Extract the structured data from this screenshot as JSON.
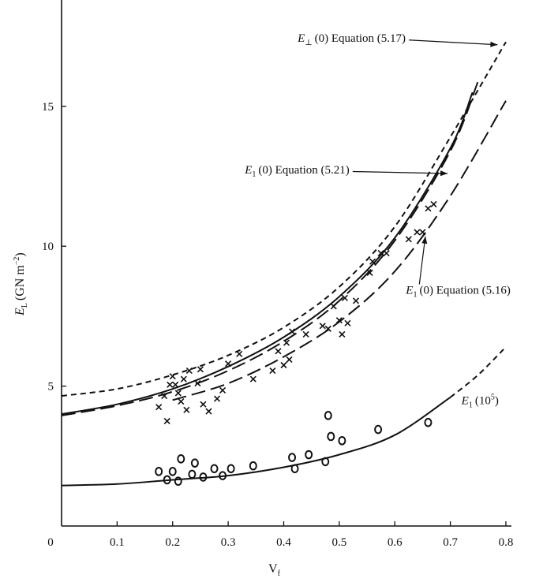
{
  "chart_data": {
    "type": "scatter",
    "title": "",
    "xlabel": "V",
    "xlabel_sub": "f",
    "ylabel": "E",
    "ylabel_sub": "L",
    "ylabel_units": "(GN m",
    "ylabel_units_sup": "−2",
    "ylabel_units_close": ")",
    "xlim": [
      0,
      0.81
    ],
    "ylim": [
      0,
      18.8
    ],
    "x_ticks": [
      0,
      0.1,
      0.2,
      0.3,
      0.4,
      0.5,
      0.6,
      0.7,
      0.8
    ],
    "x_tick_labels": [
      "0",
      "0.1",
      "0.2",
      "0.3",
      "0.4",
      "0.5",
      "0.6",
      "0.7",
      "0.8"
    ],
    "y_ticks": [
      5,
      10,
      15
    ],
    "y_tick_labels": [
      "5",
      "10",
      "15"
    ],
    "grid": false,
    "series": [
      {
        "marker": "x",
        "points": [
          [
            0.175,
            4.25
          ],
          [
            0.185,
            4.65
          ],
          [
            0.19,
            3.75
          ],
          [
            0.195,
            5.05
          ],
          [
            0.2,
            5.35
          ],
          [
            0.205,
            5.05
          ],
          [
            0.21,
            4.75
          ],
          [
            0.215,
            4.45
          ],
          [
            0.22,
            5.25
          ],
          [
            0.225,
            4.15
          ],
          [
            0.23,
            5.55
          ],
          [
            0.245,
            5.1
          ],
          [
            0.25,
            5.6
          ],
          [
            0.255,
            4.35
          ],
          [
            0.265,
            4.1
          ],
          [
            0.28,
            4.55
          ],
          [
            0.29,
            4.85
          ],
          [
            0.3,
            5.8
          ],
          [
            0.32,
            6.15
          ],
          [
            0.345,
            5.25
          ],
          [
            0.38,
            5.55
          ],
          [
            0.39,
            6.25
          ],
          [
            0.4,
            5.75
          ],
          [
            0.405,
            6.55
          ],
          [
            0.41,
            5.95
          ],
          [
            0.415,
            6.95
          ],
          [
            0.44,
            6.85
          ],
          [
            0.47,
            7.15
          ],
          [
            0.48,
            7.05
          ],
          [
            0.49,
            7.85
          ],
          [
            0.5,
            7.35
          ],
          [
            0.505,
            6.85
          ],
          [
            0.51,
            8.15
          ],
          [
            0.515,
            7.25
          ],
          [
            0.53,
            8.05
          ],
          [
            0.555,
            9.05
          ],
          [
            0.56,
            9.45
          ],
          [
            0.575,
            9.75
          ],
          [
            0.585,
            9.75
          ],
          [
            0.625,
            10.25
          ],
          [
            0.64,
            10.5
          ],
          [
            0.65,
            10.5
          ],
          [
            0.66,
            11.35
          ],
          [
            0.67,
            11.5
          ]
        ]
      },
      {
        "marker": "o",
        "points": [
          [
            0.175,
            1.95
          ],
          [
            0.19,
            1.65
          ],
          [
            0.2,
            1.95
          ],
          [
            0.21,
            1.6
          ],
          [
            0.215,
            2.4
          ],
          [
            0.235,
            1.85
          ],
          [
            0.24,
            2.25
          ],
          [
            0.255,
            1.75
          ],
          [
            0.275,
            2.05
          ],
          [
            0.29,
            1.8
          ],
          [
            0.305,
            2.05
          ],
          [
            0.345,
            2.15
          ],
          [
            0.415,
            2.45
          ],
          [
            0.42,
            2.05
          ],
          [
            0.445,
            2.55
          ],
          [
            0.475,
            2.3
          ],
          [
            0.48,
            3.95
          ],
          [
            0.485,
            3.2
          ],
          [
            0.505,
            3.05
          ],
          [
            0.57,
            3.45
          ],
          [
            0.66,
            3.7
          ]
        ]
      }
    ],
    "curves": [
      {
        "id": "eq517",
        "style": "short-dash",
        "description": "Equation (5.17)",
        "points": [
          [
            0,
            4.65
          ],
          [
            0.1,
            4.9
          ],
          [
            0.2,
            5.4
          ],
          [
            0.3,
            6.1
          ],
          [
            0.4,
            7.1
          ],
          [
            0.5,
            8.55
          ],
          [
            0.6,
            10.7
          ],
          [
            0.7,
            13.9
          ],
          [
            0.8,
            17.3
          ]
        ]
      },
      {
        "id": "eq521",
        "style": "solid",
        "description": "Equation (5.21)",
        "points": [
          [
            0,
            4.0
          ],
          [
            0.1,
            4.35
          ],
          [
            0.2,
            4.9
          ],
          [
            0.3,
            5.7
          ],
          [
            0.4,
            6.75
          ],
          [
            0.5,
            8.2
          ],
          [
            0.6,
            10.3
          ],
          [
            0.7,
            13.5
          ],
          [
            0.74,
            15.5
          ]
        ]
      },
      {
        "id": "eq521-ext",
        "style": "long-dash",
        "description": "Equation (5.21) extension",
        "points": [
          [
            0.0,
            3.95
          ],
          [
            0.1,
            4.3
          ],
          [
            0.2,
            4.8
          ],
          [
            0.3,
            5.55
          ],
          [
            0.4,
            6.6
          ],
          [
            0.5,
            8.05
          ],
          [
            0.6,
            10.2
          ],
          [
            0.7,
            13.4
          ],
          [
            0.75,
            15.9
          ]
        ]
      },
      {
        "id": "eq516",
        "style": "long-dash",
        "description": "Equation (5.16)",
        "points": [
          [
            0.2,
            4.5
          ],
          [
            0.3,
            5.1
          ],
          [
            0.4,
            6.05
          ],
          [
            0.5,
            7.3
          ],
          [
            0.6,
            9.1
          ],
          [
            0.7,
            11.8
          ],
          [
            0.8,
            15.2
          ]
        ]
      },
      {
        "id": "e105",
        "style": "solid",
        "description": "E(10^5)",
        "points": [
          [
            0.0,
            1.45
          ],
          [
            0.1,
            1.5
          ],
          [
            0.2,
            1.65
          ],
          [
            0.3,
            1.8
          ],
          [
            0.4,
            2.1
          ],
          [
            0.5,
            2.55
          ],
          [
            0.6,
            3.25
          ],
          [
            0.7,
            4.6
          ]
        ]
      },
      {
        "id": "e105-ext",
        "style": "short-dash",
        "description": "E(10^5) extension",
        "points": [
          [
            0.7,
            4.6
          ],
          [
            0.75,
            5.4
          ],
          [
            0.8,
            6.4
          ]
        ]
      }
    ],
    "annotations": [
      {
        "id": "eq517",
        "sym": "E",
        "sub": "⊥",
        "text": "(0) Equation (5.17)",
        "at": [
          0.425,
          17.3
        ],
        "arrow_to": [
          0.785,
          17.2
        ]
      },
      {
        "id": "eq521",
        "sym": "E",
        "sub": "1",
        "text": "(0) Equation (5.21)",
        "at": [
          0.33,
          12.6
        ],
        "arrow_to": [
          0.695,
          12.6
        ]
      },
      {
        "id": "eq516",
        "sym": "E",
        "sub": "1",
        "text": "(0) Equation (5.16)",
        "at": [
          0.62,
          8.3
        ],
        "arrow_to": [
          0.655,
          10.35
        ]
      },
      {
        "id": "e105",
        "sym": "E",
        "sub": "1",
        "text": "(10",
        "sup": "5",
        "close": ")",
        "at": [
          0.72,
          4.35
        ]
      }
    ]
  }
}
